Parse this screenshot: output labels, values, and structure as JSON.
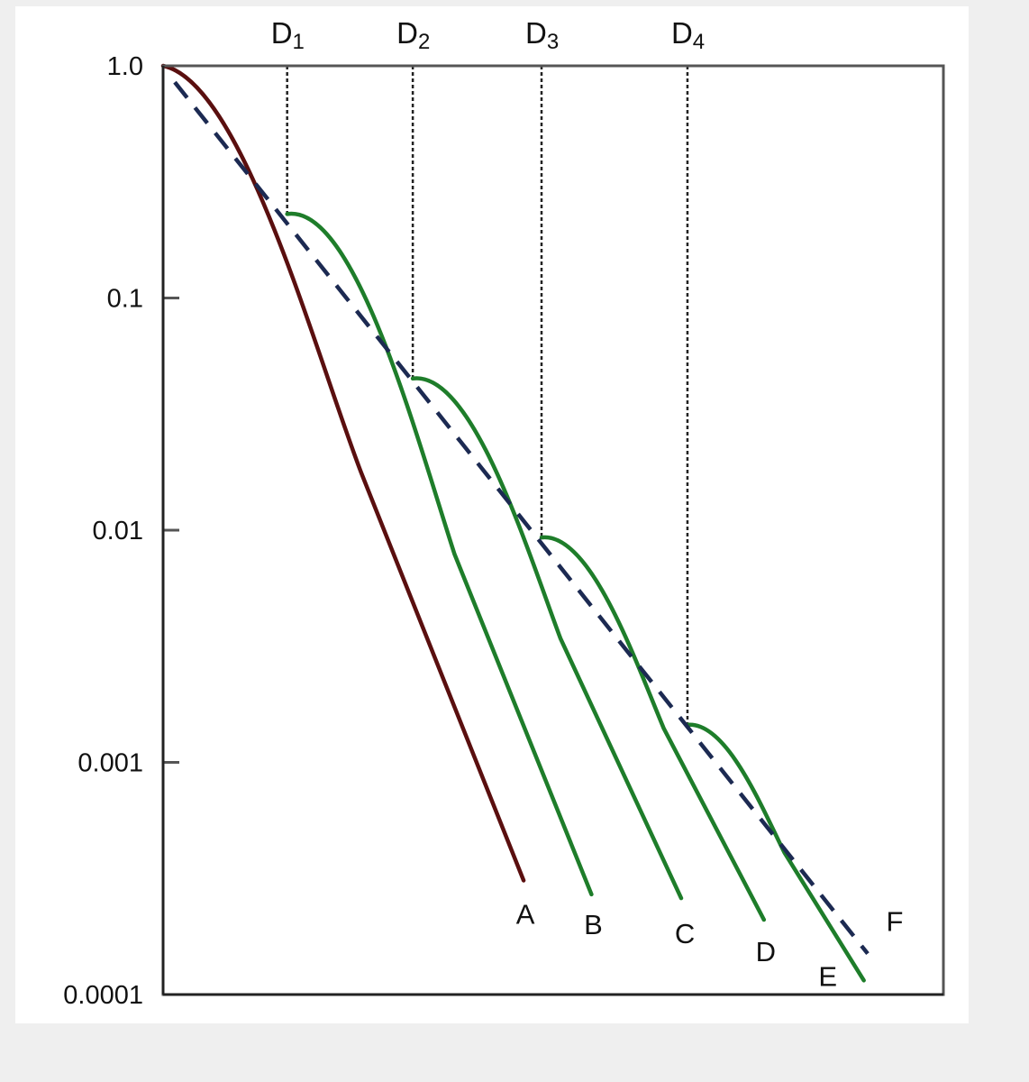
{
  "chart_data": {
    "type": "line",
    "title": "",
    "xlabel": "",
    "ylabel": "",
    "y_scale": "log",
    "ylim": [
      0.0001,
      1.0
    ],
    "xlim": [
      0,
      1
    ],
    "y_ticks": [
      {
        "value": 1.0,
        "label": "1.0"
      },
      {
        "value": 0.1,
        "label": "0.1"
      },
      {
        "value": 0.01,
        "label": "0.01"
      },
      {
        "value": 0.001,
        "label": "0.001"
      },
      {
        "value": 0.0001,
        "label": "0.0001"
      }
    ],
    "doses": [
      {
        "label": "D",
        "sub": "1",
        "x": 0.159,
        "y": 0.23
      },
      {
        "label": "D",
        "sub": "2",
        "x": 0.32,
        "y": 0.045
      },
      {
        "label": "D",
        "sub": "3",
        "x": 0.485,
        "y": 0.0093
      },
      {
        "label": "D",
        "sub": "4",
        "x": 0.672,
        "y": 0.00145
      }
    ],
    "series": [
      {
        "label": "A",
        "color": "#5a0f0f",
        "start_x": 0.0,
        "start_y": 1.0,
        "end_x": 0.462,
        "end_y": 0.00031
      },
      {
        "label": "B",
        "color": "#1e7d2a",
        "start_x": 0.159,
        "start_y": 0.23,
        "end_x": 0.549,
        "end_y": 0.00027
      },
      {
        "label": "C",
        "color": "#1e7d2a",
        "start_x": 0.32,
        "start_y": 0.045,
        "end_x": 0.664,
        "end_y": 0.00026
      },
      {
        "label": "D",
        "color": "#1e7d2a",
        "start_x": 0.485,
        "start_y": 0.0093,
        "end_x": 0.77,
        "end_y": 0.00021
      },
      {
        "label": "E",
        "color": "#1e7d2a",
        "start_x": 0.672,
        "start_y": 0.00145,
        "end_x": 0.898,
        "end_y": 0.000115
      }
    ],
    "reference_line": {
      "label": "F",
      "color": "#1c2a52",
      "dash": true,
      "start_x": 0.015,
      "start_y": 0.85,
      "end_x": 0.903,
      "end_y": 0.00015
    },
    "grid": false,
    "legend": "none",
    "colors": {
      "survival": "#5a0f0f",
      "fractions": "#1e7d2a",
      "reference": "#1c2a52",
      "axis": "#555555",
      "text": "#111111"
    }
  }
}
